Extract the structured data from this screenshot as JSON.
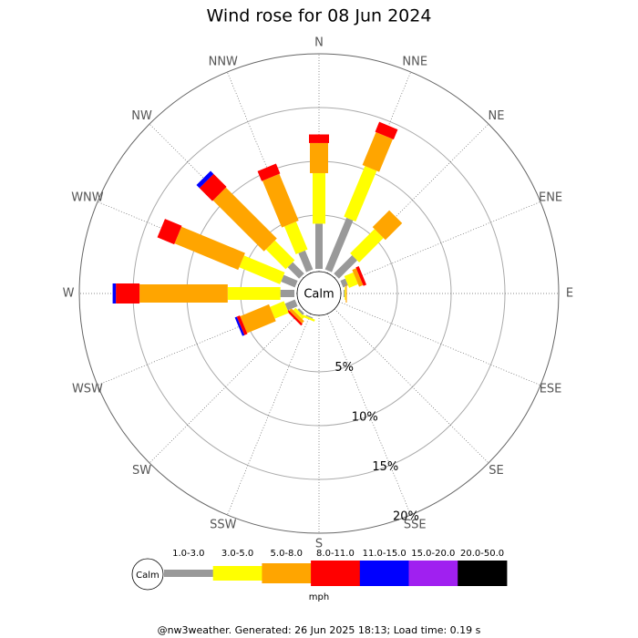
{
  "chart_data": {
    "type": "windrose",
    "title": "Wind rose for 08 Jun 2024",
    "categories": [
      "N",
      "NNE",
      "NE",
      "ENE",
      "E",
      "ESE",
      "SE",
      "SSE",
      "S",
      "SSW",
      "SW",
      "WSW",
      "W",
      "WNW",
      "NW",
      "NNW"
    ],
    "calm_label": "Calm",
    "unit_label": "mph",
    "footer": "@nw3weather. Generated: 26 Jun 2025 18:13; Load time: 0.19 s",
    "ylim": [
      0,
      20
    ],
    "yticks": [
      {
        "value": 5,
        "label": "5%"
      },
      {
        "value": 10,
        "label": "10%"
      },
      {
        "value": 15,
        "label": "15%"
      },
      {
        "value": 20,
        "label": "20%"
      }
    ],
    "series": [
      {
        "name": "1.0-3.0",
        "color": "#999999",
        "values": [
          4.2,
          5.2,
          2.4,
          0.5,
          0.1,
          0,
          0,
          0,
          0,
          0.1,
          0.2,
          1.0,
          1.3,
          1.4,
          1.5,
          1.9
        ]
      },
      {
        "name": "3.0-5.0",
        "color": "#ffff00",
        "values": [
          4.7,
          5.1,
          3.2,
          0.9,
          0.1,
          0,
          0,
          0,
          0,
          0.2,
          0.3,
          1.4,
          4.9,
          4.1,
          2.6,
          2.8
        ]
      },
      {
        "name": "5.0-8.0",
        "color": "#ffa500",
        "values": [
          2.8,
          3.3,
          2.2,
          0.4,
          0.1,
          0,
          0,
          0,
          0,
          0,
          0.3,
          2.9,
          8.2,
          6.4,
          6.7,
          4.7
        ]
      },
      {
        "name": "8.0-11.0",
        "color": "#ff0000",
        "values": [
          0.8,
          1.0,
          0,
          0.3,
          0,
          0,
          0,
          0,
          0,
          0,
          0.2,
          0.3,
          2.2,
          1.7,
          1.7,
          1.0
        ]
      },
      {
        "name": "11.0-15.0",
        "color": "#0000ff",
        "values": [
          0,
          0,
          0,
          0,
          0,
          0,
          0,
          0,
          0,
          0,
          0,
          0.2,
          0.3,
          0,
          0.4,
          0
        ]
      },
      {
        "name": "15.0-20.0",
        "color": "#a020f0",
        "values": [
          0,
          0,
          0,
          0,
          0,
          0,
          0,
          0,
          0,
          0,
          0,
          0,
          0,
          0,
          0,
          0
        ]
      },
      {
        "name": "20.0-50.0",
        "color": "#000000",
        "values": [
          0,
          0,
          0,
          0,
          0,
          0,
          0,
          0,
          0,
          0,
          0,
          0,
          0,
          0,
          0,
          0
        ]
      }
    ]
  }
}
